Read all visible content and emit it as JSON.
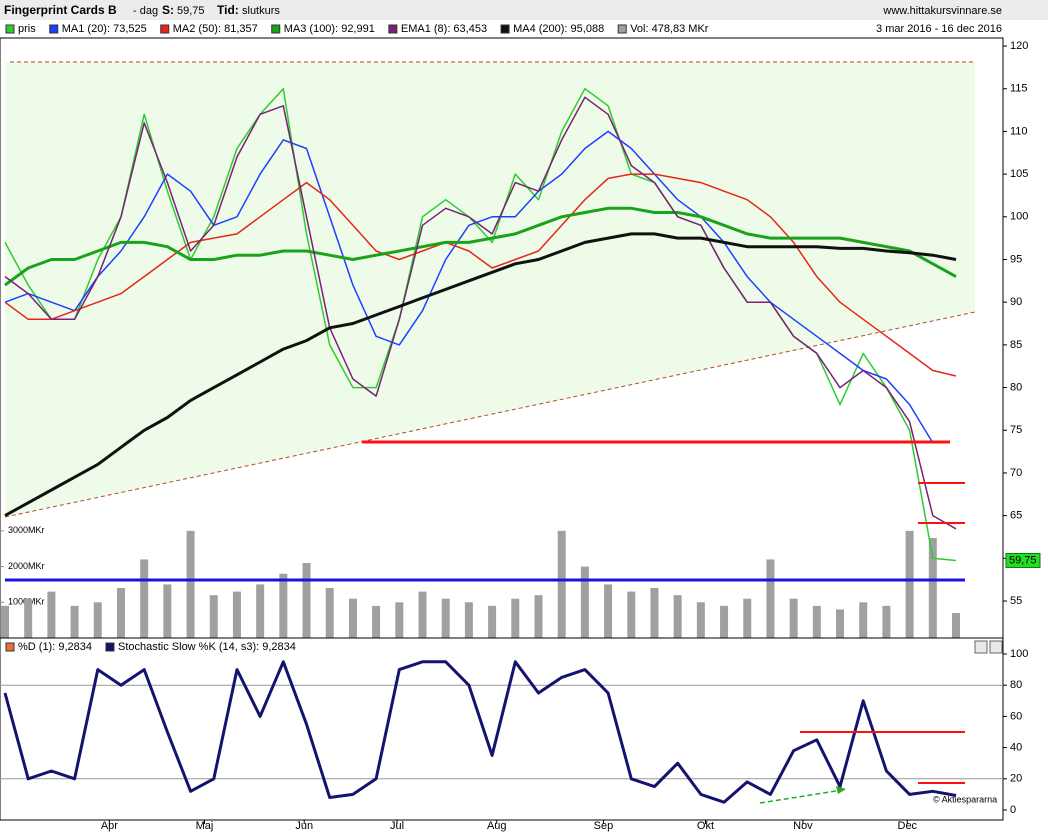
{
  "header": {
    "title": "Fingerprint Cards B",
    "period": "- dag",
    "s_label": "S:",
    "s_value": "59,75",
    "tid_label": "Tid:",
    "tid_value": "slutkurs",
    "site": "www.hittakursvinnare.se",
    "range": "3 mar 2016 - 16 dec 2016",
    "copyright": "© Aktiespararna"
  },
  "chart_data": [
    {
      "type": "line",
      "x": [
        0,
        1,
        2,
        3,
        4,
        5,
        6,
        7,
        8,
        9,
        10,
        11,
        12,
        13,
        14,
        15,
        16,
        17,
        18,
        19,
        20,
        21,
        22,
        23,
        24,
        25,
        26,
        27,
        28,
        29,
        30,
        31,
        32,
        33,
        34,
        35,
        36,
        37,
        38,
        39,
        40,
        41
      ],
      "xlim": [
        0,
        41
      ],
      "ylim": [
        50.67,
        120.94
      ],
      "yticks": [
        55,
        60,
        65,
        70,
        75,
        80,
        85,
        90,
        95,
        100,
        105,
        110,
        115,
        120
      ],
      "y2lim": [
        0,
        16800
      ],
      "y2ticks": [
        {
          "value": 1000,
          "label": "1000MKr"
        },
        {
          "value": 2000,
          "label": "2000MKr"
        },
        {
          "value": 3000,
          "label": "3000MKr"
        }
      ],
      "last_label": {
        "value": 59.75,
        "label": "59,75"
      },
      "series": [
        {
          "name": "pris",
          "color": "#2ecc2e",
          "values": [
            97,
            92,
            88,
            88,
            95,
            100,
            112,
            103,
            95,
            100,
            108,
            112,
            115,
            98,
            85,
            80,
            80,
            88,
            100,
            102,
            100,
            97,
            105,
            102,
            110,
            115,
            113,
            105,
            104,
            100,
            99,
            94,
            90,
            90,
            86,
            84,
            78,
            84,
            80,
            75,
            60,
            59.75
          ]
        },
        {
          "name": "MA1 (20): 73,525",
          "color": "#1f3fff",
          "values": [
            90,
            91,
            90,
            89,
            93,
            96,
            100,
            105,
            103,
            99,
            100,
            105,
            109,
            108,
            100,
            92,
            86,
            85,
            89,
            95,
            99,
            100,
            100,
            103,
            105,
            108,
            110,
            108,
            105,
            102,
            100,
            97,
            93,
            90,
            88,
            86,
            84,
            82,
            81,
            78,
            73.525,
            null
          ]
        },
        {
          "name": "MA2 (50): 81,357",
          "color": "#e8251b",
          "values": [
            90,
            88,
            88,
            89,
            90,
            91,
            93,
            95,
            97,
            97.5,
            98,
            100,
            102,
            104,
            102,
            99,
            96,
            95,
            96,
            97,
            96,
            94,
            95,
            96,
            99,
            102,
            104.5,
            105,
            105,
            104.5,
            104,
            103,
            102,
            100,
            97,
            93,
            90,
            88,
            86,
            84,
            82,
            81.357
          ]
        },
        {
          "name": "MA3 (100): 92,991",
          "color": "#1aa31a",
          "values": [
            92,
            94,
            95,
            95,
            96,
            97,
            97,
            96.5,
            95,
            95,
            95.5,
            95.5,
            96,
            96,
            95.5,
            95,
            95.5,
            96,
            96.5,
            97,
            97,
            97.5,
            98,
            99,
            100,
            100.5,
            101,
            101,
            100.5,
            100.5,
            100,
            99,
            98,
            97.5,
            97.5,
            97.5,
            97.5,
            97,
            96.5,
            96,
            94.5,
            93
          ]
        },
        {
          "name": "EMA1 (8): 63,453",
          "color": "#7b1f7b",
          "values": [
            93,
            91,
            88,
            88,
            93,
            100,
            111,
            104,
            96,
            99,
            107,
            112,
            113,
            100,
            87,
            81,
            79,
            88,
            99,
            101,
            100,
            98,
            104,
            103,
            109,
            114,
            112,
            106,
            104,
            100,
            99,
            94,
            90,
            90,
            86,
            84,
            80,
            82,
            80,
            76,
            65,
            63.453
          ]
        },
        {
          "name": "MA4 (200): 95,088",
          "color": "#111111",
          "values": [
            65,
            66.5,
            68,
            69.5,
            71,
            73,
            75,
            76.5,
            78.5,
            80,
            81.5,
            83,
            84.5,
            85.5,
            87,
            87.5,
            88.5,
            89.5,
            90.5,
            91.5,
            92.5,
            93.5,
            94.5,
            95,
            96,
            97,
            97.5,
            98,
            98,
            97.5,
            97.5,
            97,
            96.5,
            96.5,
            96.5,
            96.5,
            96.3,
            96.3,
            96,
            95.8,
            95.5,
            95
          ]
        },
        {
          "name": "Vol: 478,83 MKr",
          "color": "#a0a0a0",
          "axis": "y2",
          "kind": "bar",
          "values": [
            900,
            1100,
            1300,
            900,
            1000,
            1400,
            2200,
            1500,
            3000,
            1200,
            1300,
            1500,
            1800,
            2100,
            1400,
            1100,
            900,
            1000,
            1300,
            1100,
            1000,
            900,
            1100,
            1200,
            3000,
            2000,
            1500,
            1300,
            1400,
            1200,
            1000,
            900,
            1100,
            2200,
            1100,
            900,
            800,
            1000,
            900,
            3000,
            2800,
            700
          ]
        }
      ]
    },
    {
      "type": "line",
      "x": [
        0,
        1,
        2,
        3,
        4,
        5,
        6,
        7,
        8,
        9,
        10,
        11,
        12,
        13,
        14,
        15,
        16,
        17,
        18,
        19,
        20,
        21,
        22,
        23,
        24,
        25,
        26,
        27,
        28,
        29,
        30,
        31,
        32,
        33,
        34,
        35,
        36,
        37,
        38,
        39,
        40,
        41
      ],
      "xlim": [
        0,
        41
      ],
      "ylim": [
        -6.4,
        106.4
      ],
      "yticks": [
        0,
        20,
        40,
        60,
        80,
        100
      ],
      "reference_lines": [
        20,
        80
      ],
      "xticks": [
        {
          "value": 4.5,
          "label": "Apr"
        },
        {
          "value": 8.6,
          "label": "Maj"
        },
        {
          "value": 12.9,
          "label": "Jun"
        },
        {
          "value": 16.9,
          "label": "Jul"
        },
        {
          "value": 21.2,
          "label": "Aug"
        },
        {
          "value": 25.8,
          "label": "Sep"
        },
        {
          "value": 30.2,
          "label": "Okt"
        },
        {
          "value": 34.4,
          "label": "Nov"
        },
        {
          "value": 38.9,
          "label": "Dec"
        }
      ],
      "series": [
        {
          "name": "%D (1): 9,2834",
          "color": "#e8703a",
          "values": [
            75,
            20,
            25,
            20,
            90,
            80,
            90,
            50,
            12,
            20,
            90,
            60,
            95,
            55,
            8,
            10,
            20,
            90,
            95,
            95,
            80,
            35,
            95,
            75,
            85,
            90,
            75,
            20,
            15,
            30,
            10,
            5,
            18,
            10,
            38,
            45,
            15,
            70,
            25,
            10,
            12,
            9.2834
          ]
        },
        {
          "name": "Stochastic Slow %K (14, s3): 9,2834",
          "color": "#14146e",
          "values": [
            75,
            20,
            25,
            20,
            90,
            80,
            90,
            50,
            12,
            20,
            90,
            60,
            95,
            55,
            8,
            10,
            20,
            90,
            95,
            95,
            80,
            35,
            95,
            75,
            85,
            90,
            75,
            20,
            15,
            30,
            10,
            5,
            18,
            10,
            38,
            45,
            15,
            70,
            25,
            10,
            12,
            9.2834
          ]
        }
      ]
    }
  ]
}
